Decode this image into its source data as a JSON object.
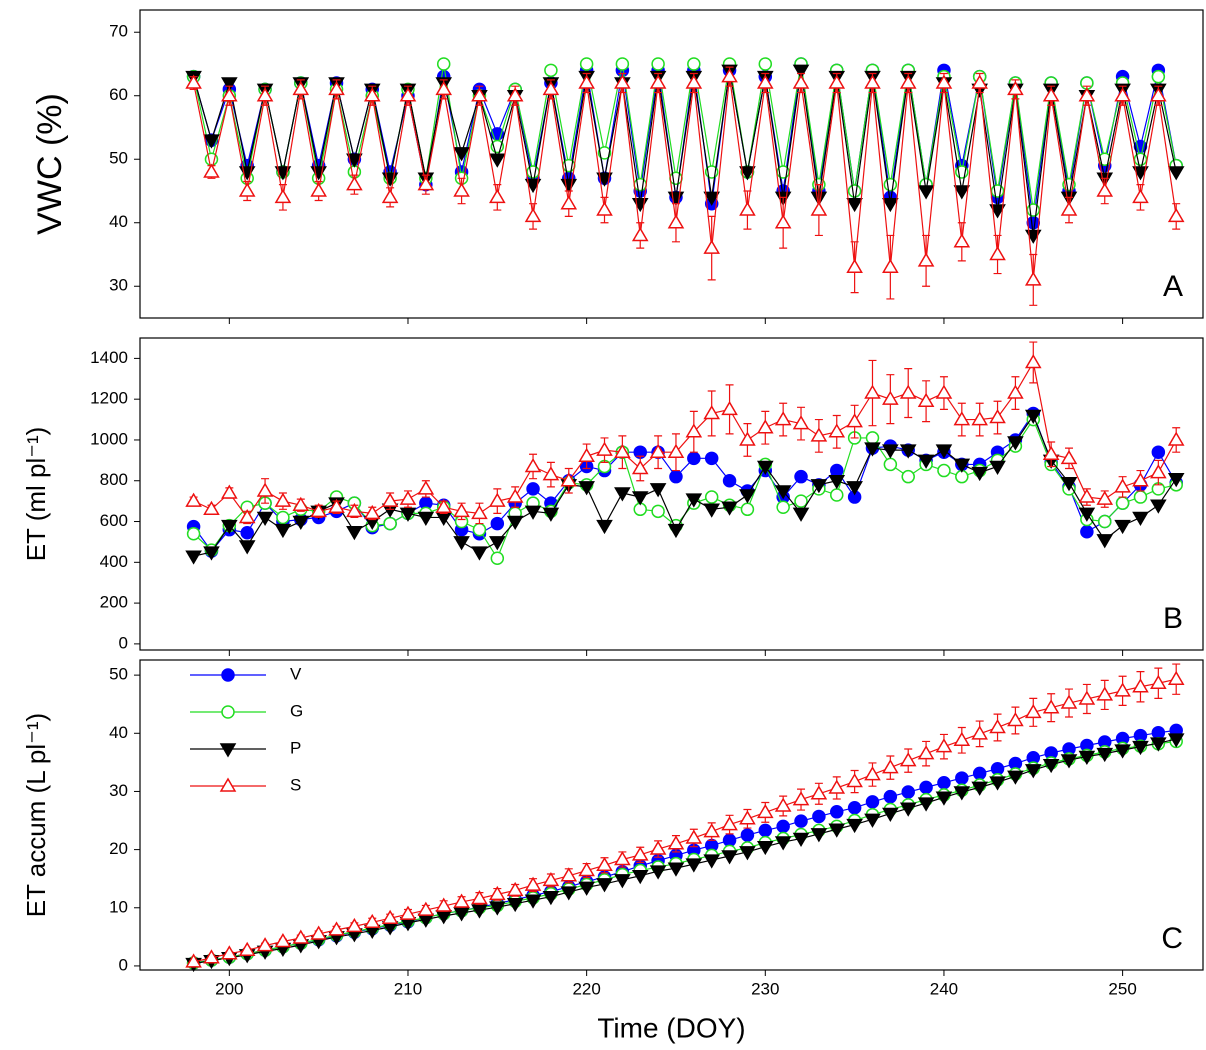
{
  "chart_data": [
    {
      "type": "line",
      "ylabel": "VWC (%)",
      "annotation": "A",
      "show_xtick_labels": false,
      "xlim": [
        195,
        254.5
      ],
      "ylim": [
        25,
        73.5
      ],
      "xticks": [
        200,
        210,
        220,
        230,
        240,
        250
      ],
      "yticks": [
        30,
        40,
        50,
        60,
        70
      ],
      "x": [
        198,
        199,
        200,
        201,
        202,
        203,
        204,
        205,
        206,
        207,
        208,
        209,
        210,
        211,
        212,
        213,
        214,
        215,
        216,
        217,
        218,
        219,
        220,
        221,
        222,
        223,
        224,
        225,
        226,
        227,
        228,
        229,
        230,
        231,
        232,
        233,
        234,
        235,
        236,
        237,
        238,
        239,
        240,
        241,
        242,
        243,
        244,
        245,
        246,
        247,
        248,
        249,
        250,
        251,
        252,
        253
      ],
      "series": [
        {
          "name": "V",
          "color": "#0000ff",
          "marker": "filled-circle",
          "values": [
            63,
            53,
            61,
            49,
            61,
            48,
            62,
            49,
            62,
            50,
            61,
            48,
            60,
            46,
            63,
            48,
            61,
            54,
            61,
            47,
            62,
            47,
            64,
            47,
            64,
            45,
            64,
            44,
            64,
            43,
            64,
            48,
            63,
            45,
            65,
            45,
            64,
            45,
            64,
            44,
            64,
            46,
            64,
            49,
            63,
            44,
            62,
            40,
            62,
            45,
            62,
            49,
            63,
            52,
            64,
            49
          ]
        },
        {
          "name": "G",
          "color": "#22dd22",
          "marker": "open-circle",
          "values": [
            63,
            50,
            60,
            47,
            61,
            48,
            62,
            47,
            61,
            48,
            60,
            47,
            61,
            47,
            65,
            47,
            60,
            52,
            61,
            48,
            64,
            49,
            65,
            51,
            65,
            46,
            65,
            47,
            65,
            48,
            65,
            48,
            65,
            48,
            65,
            46,
            64,
            45,
            64,
            46,
            64,
            46,
            63,
            48,
            63,
            45,
            62,
            42,
            62,
            46,
            62,
            50,
            62,
            50,
            63,
            49
          ]
        },
        {
          "name": "P",
          "color": "#000000",
          "marker": "filled-triangle-down",
          "values": [
            63,
            53,
            62,
            48,
            61,
            48,
            62,
            48,
            62,
            50,
            61,
            47,
            61,
            47,
            62,
            51,
            60,
            50,
            60,
            46,
            62,
            46,
            63,
            47,
            62,
            43,
            63,
            44,
            63,
            44,
            64,
            48,
            63,
            44,
            64,
            44,
            63,
            43,
            63,
            43,
            63,
            45,
            62,
            45,
            61,
            42,
            61,
            38,
            61,
            44,
            60,
            47,
            61,
            48,
            61,
            48
          ]
        },
        {
          "name": "S",
          "color": "#ee1111",
          "marker": "open-triangle-up",
          "values": [
            62,
            48,
            60,
            45,
            60,
            44,
            61,
            45,
            61,
            46,
            60,
            44,
            60,
            46,
            61,
            45,
            60,
            44,
            60,
            41,
            61,
            43,
            62,
            42,
            62,
            38,
            62,
            40,
            62,
            36,
            63,
            42,
            62,
            40,
            62,
            42,
            62,
            33,
            62,
            33,
            62,
            34,
            62,
            37,
            62,
            35,
            61,
            31,
            60,
            42,
            60,
            45,
            60,
            44,
            60,
            41
          ],
          "errors": [
            1,
            1,
            1.5,
            1.5,
            1.5,
            2,
            1.5,
            1.5,
            1.5,
            1.5,
            1.5,
            1.5,
            1.5,
            1.5,
            1.5,
            2,
            1.5,
            2,
            1.5,
            2,
            1.5,
            2,
            1.5,
            2,
            1.5,
            2,
            1.5,
            3,
            1.5,
            5,
            1.5,
            3,
            1.5,
            4,
            1.5,
            4,
            1.5,
            4,
            1.5,
            5,
            1.5,
            4,
            1.5,
            3,
            1.5,
            3,
            1.5,
            4,
            1.5,
            2,
            1.5,
            2,
            1.5,
            2,
            1.5,
            2
          ]
        }
      ]
    },
    {
      "type": "line",
      "ylabel": "ET (ml pl⁻¹)",
      "annotation": "B",
      "show_xtick_labels": false,
      "xlim": [
        195,
        254.5
      ],
      "ylim": [
        -30,
        1500
      ],
      "xticks": [
        200,
        210,
        220,
        230,
        240,
        250
      ],
      "yticks": [
        0,
        200,
        400,
        600,
        800,
        1000,
        1200,
        1400
      ],
      "x": [
        198,
        199,
        200,
        201,
        202,
        203,
        204,
        205,
        206,
        207,
        208,
        209,
        210,
        211,
        212,
        213,
        214,
        215,
        216,
        217,
        218,
        219,
        220,
        221,
        222,
        223,
        224,
        225,
        226,
        227,
        228,
        229,
        230,
        231,
        232,
        233,
        234,
        235,
        236,
        237,
        238,
        239,
        240,
        241,
        242,
        243,
        244,
        245,
        246,
        247,
        248,
        249,
        250,
        251,
        252,
        253
      ],
      "series": [
        {
          "name": "V",
          "color": "#0000ff",
          "marker": "filled-circle",
          "values": [
            575,
            455,
            560,
            545,
            690,
            600,
            610,
            620,
            650,
            690,
            570,
            590,
            640,
            690,
            680,
            560,
            540,
            590,
            690,
            760,
            690,
            800,
            870,
            850,
            940,
            940,
            940,
            820,
            910,
            910,
            800,
            750,
            850,
            720,
            820,
            780,
            850,
            720,
            960,
            970,
            950,
            900,
            940,
            880,
            880,
            940,
            1000,
            1130,
            890,
            770,
            550,
            600,
            690,
            780,
            940,
            790
          ]
        },
        {
          "name": "G",
          "color": "#22dd22",
          "marker": "open-circle",
          "values": [
            540,
            460,
            580,
            670,
            690,
            620,
            660,
            650,
            720,
            690,
            580,
            590,
            640,
            640,
            670,
            600,
            560,
            420,
            640,
            690,
            650,
            790,
            780,
            870,
            940,
            660,
            650,
            580,
            690,
            720,
            680,
            660,
            880,
            670,
            700,
            760,
            730,
            1010,
            1010,
            880,
            820,
            880,
            850,
            820,
            850,
            900,
            970,
            1100,
            880,
            760,
            610,
            600,
            690,
            720,
            760,
            780
          ]
        },
        {
          "name": "P",
          "color": "#000000",
          "marker": "filled-triangle-down",
          "values": [
            430,
            450,
            580,
            480,
            620,
            560,
            600,
            650,
            690,
            550,
            600,
            660,
            640,
            620,
            620,
            500,
            450,
            500,
            600,
            650,
            640,
            780,
            770,
            580,
            740,
            720,
            760,
            560,
            710,
            660,
            670,
            730,
            870,
            750,
            640,
            780,
            800,
            770,
            960,
            950,
            950,
            900,
            950,
            880,
            840,
            870,
            990,
            1120,
            900,
            790,
            640,
            510,
            580,
            620,
            680,
            810
          ]
        },
        {
          "name": "S",
          "color": "#ee1111",
          "marker": "open-triangle-up",
          "values": [
            700,
            660,
            740,
            620,
            750,
            700,
            680,
            650,
            670,
            650,
            640,
            700,
            710,
            760,
            670,
            650,
            640,
            700,
            720,
            870,
            830,
            800,
            920,
            950,
            940,
            860,
            940,
            940,
            1040,
            1130,
            1150,
            1000,
            1060,
            1100,
            1080,
            1020,
            1040,
            1090,
            1230,
            1200,
            1230,
            1190,
            1230,
            1100,
            1100,
            1110,
            1230,
            1380,
            930,
            910,
            720,
            710,
            770,
            800,
            840,
            1000
          ],
          "errors": [
            20,
            20,
            25,
            30,
            60,
            40,
            30,
            30,
            30,
            30,
            30,
            40,
            40,
            40,
            30,
            40,
            50,
            60,
            50,
            60,
            60,
            60,
            60,
            60,
            80,
            60,
            80,
            90,
            100,
            110,
            120,
            80,
            80,
            80,
            80,
            80,
            80,
            80,
            160,
            120,
            120,
            100,
            80,
            80,
            80,
            80,
            80,
            100,
            60,
            50,
            40,
            40,
            50,
            50,
            60,
            60
          ]
        }
      ]
    },
    {
      "type": "line",
      "ylabel": "ET accum  (L pl⁻¹)",
      "xlabel": "Time (DOY)",
      "annotation": "C",
      "show_xtick_labels": true,
      "legend": "upper left",
      "xlim": [
        195,
        254.5
      ],
      "ylim": [
        -0.7,
        52.6
      ],
      "xticks": [
        200,
        210,
        220,
        230,
        240,
        250
      ],
      "yticks": [
        0,
        10,
        20,
        30,
        40,
        50
      ],
      "x": [
        198,
        199,
        200,
        201,
        202,
        203,
        204,
        205,
        206,
        207,
        208,
        209,
        210,
        211,
        212,
        213,
        214,
        215,
        216,
        217,
        218,
        219,
        220,
        221,
        222,
        223,
        224,
        225,
        226,
        227,
        228,
        229,
        230,
        231,
        232,
        233,
        234,
        235,
        236,
        237,
        238,
        239,
        240,
        241,
        242,
        243,
        244,
        245,
        246,
        247,
        248,
        249,
        250,
        251,
        252,
        253
      ],
      "series": [
        {
          "name": "V",
          "color": "#0000ff",
          "marker": "filled-circle",
          "values": [
            0.5,
            1.0,
            1.5,
            2.1,
            2.7,
            3.3,
            3.9,
            4.5,
            5.2,
            5.8,
            6.4,
            7.0,
            7.6,
            8.3,
            9.0,
            9.5,
            10.1,
            10.7,
            11.4,
            12.1,
            12.8,
            13.6,
            14.5,
            15.3,
            16.2,
            17.2,
            18.1,
            19.0,
            19.9,
            20.7,
            21.6,
            22.5,
            23.3,
            24.0,
            24.9,
            25.7,
            26.5,
            27.2,
            28.2,
            29.1,
            29.9,
            30.7,
            31.5,
            32.3,
            33.1,
            33.9,
            34.8,
            35.8,
            36.6,
            37.3,
            37.9,
            38.5,
            39.1,
            39.6,
            40.1,
            40.5
          ]
        },
        {
          "name": "G",
          "color": "#22dd22",
          "marker": "open-circle",
          "values": [
            0.5,
            1.0,
            1.5,
            2.1,
            2.7,
            3.3,
            3.9,
            4.6,
            5.3,
            5.9,
            6.5,
            7.1,
            7.7,
            8.3,
            9.0,
            9.5,
            10.0,
            10.4,
            11.1,
            11.7,
            12.4,
            13.2,
            14.0,
            14.8,
            15.7,
            16.4,
            17.0,
            17.6,
            18.3,
            19.0,
            19.7,
            20.3,
            21.2,
            21.9,
            22.6,
            23.3,
            24.0,
            25.0,
            26.0,
            26.9,
            27.7,
            28.6,
            29.4,
            30.2,
            31.1,
            32.0,
            33.0,
            34.0,
            34.9,
            35.6,
            36.2,
            36.8,
            37.4,
            37.8,
            38.2,
            38.6
          ]
        },
        {
          "name": "P",
          "color": "#000000",
          "marker": "filled-triangle-down",
          "values": [
            0.4,
            0.9,
            1.4,
            1.9,
            2.5,
            3.0,
            3.6,
            4.3,
            5.0,
            5.5,
            6.1,
            6.7,
            7.4,
            8.0,
            8.6,
            9.1,
            9.6,
            10.1,
            10.7,
            11.3,
            11.9,
            12.7,
            13.5,
            14.1,
            14.8,
            15.5,
            16.3,
            16.8,
            17.5,
            18.2,
            18.9,
            19.6,
            20.5,
            21.3,
            21.9,
            22.7,
            23.5,
            24.3,
            25.2,
            26.2,
            27.1,
            28.0,
            29.0,
            29.9,
            30.7,
            31.6,
            32.6,
            33.7,
            34.6,
            35.4,
            36.0,
            36.5,
            37.1,
            37.7,
            38.3,
            39.0
          ]
        },
        {
          "name": "S",
          "color": "#ee1111",
          "marker": "open-triangle-up",
          "values": [
            0.7,
            1.4,
            2.1,
            2.7,
            3.5,
            4.2,
            4.8,
            5.5,
            6.2,
            6.8,
            7.5,
            8.2,
            8.9,
            9.6,
            10.3,
            11.0,
            11.6,
            12.3,
            13.0,
            13.9,
            14.7,
            15.5,
            16.4,
            17.3,
            18.3,
            19.1,
            20.1,
            21.0,
            22.0,
            23.1,
            24.3,
            25.3,
            26.4,
            27.5,
            28.6,
            29.6,
            30.6,
            31.7,
            32.9,
            34.1,
            35.3,
            36.5,
            37.7,
            38.8,
            39.9,
            41.0,
            42.2,
            43.6,
            44.4,
            45.2,
            45.9,
            46.6,
            47.3,
            48.0,
            48.6,
            49.3
          ],
          "errors": [
            0.2,
            0.2,
            0.3,
            0.3,
            0.4,
            0.4,
            0.5,
            0.5,
            0.6,
            0.6,
            0.7,
            0.7,
            0.8,
            0.8,
            0.9,
            0.9,
            1.0,
            1.0,
            1.0,
            1.1,
            1.1,
            1.2,
            1.2,
            1.3,
            1.3,
            1.3,
            1.4,
            1.4,
            1.5,
            1.5,
            1.6,
            1.6,
            1.7,
            1.7,
            1.8,
            1.8,
            1.9,
            1.9,
            2.0,
            2.0,
            2.0,
            2.1,
            2.1,
            2.2,
            2.2,
            2.3,
            2.3,
            2.4,
            2.4,
            2.4,
            2.5,
            2.5,
            2.5,
            2.6,
            2.6,
            2.6
          ]
        }
      ]
    }
  ]
}
